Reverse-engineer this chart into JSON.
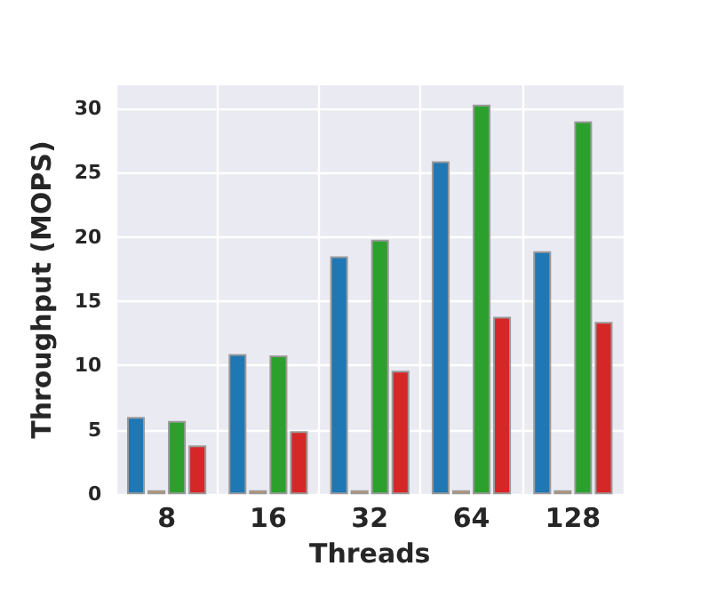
{
  "chart_data": {
    "type": "bar",
    "xlabel": "Threads",
    "ylabel": "Throughput (MOPS)",
    "categories": [
      "8",
      "16",
      "32",
      "64",
      "128"
    ],
    "series": [
      {
        "color": "#1f77b4",
        "values": [
          6.0,
          10.9,
          18.5,
          25.9,
          18.9
        ]
      },
      {
        "color": "#ff7f0e",
        "values": [
          0.3,
          0.3,
          0.3,
          0.3,
          0.3
        ]
      },
      {
        "color": "#2ca02c",
        "values": [
          5.7,
          10.8,
          19.8,
          30.3,
          29.0
        ]
      },
      {
        "color": "#d62728",
        "values": [
          3.8,
          4.9,
          9.6,
          13.8,
          13.4
        ]
      }
    ],
    "ylim": [
      0,
      31.8
    ],
    "yticks": [
      0,
      5,
      10,
      15,
      20,
      25,
      30
    ],
    "grid": true
  }
}
